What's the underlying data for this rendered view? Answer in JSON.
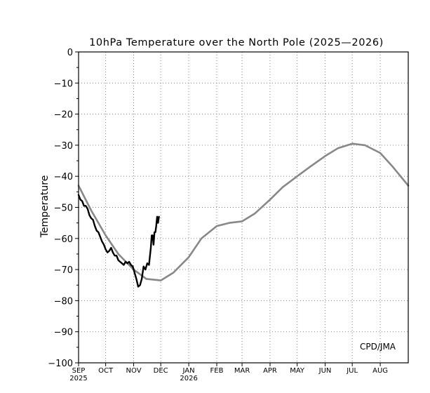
{
  "chart_data": {
    "type": "line",
    "title": "10hPa Temperature over the North Pole (2025—2026)",
    "ylabel": "Temperature",
    "xlabel": "",
    "ylim": [
      -100,
      0
    ],
    "yticks": [
      0,
      -10,
      -20,
      -30,
      -40,
      -50,
      -60,
      -70,
      -80,
      -90,
      -100
    ],
    "xlim": [
      "2025-09-01",
      "2026-09-01"
    ],
    "xticks": [
      {
        "date": "2025-09-01",
        "label": "SEP",
        "year": "2025"
      },
      {
        "date": "2025-10-01",
        "label": "OCT",
        "year": ""
      },
      {
        "date": "2025-11-01",
        "label": "NOV",
        "year": ""
      },
      {
        "date": "2025-12-01",
        "label": "DEC",
        "year": ""
      },
      {
        "date": "2026-01-01",
        "label": "JAN",
        "year": "2026"
      },
      {
        "date": "2026-02-01",
        "label": "FEB",
        "year": ""
      },
      {
        "date": "2026-03-01",
        "label": "MAR",
        "year": ""
      },
      {
        "date": "2026-04-01",
        "label": "APR",
        "year": ""
      },
      {
        "date": "2026-05-01",
        "label": "MAY",
        "year": ""
      },
      {
        "date": "2026-06-01",
        "label": "JUN",
        "year": ""
      },
      {
        "date": "2026-07-01",
        "label": "JUL",
        "year": ""
      },
      {
        "date": "2026-08-01",
        "label": "AUG",
        "year": ""
      }
    ],
    "grid": true,
    "annotation": "CPD/JMA",
    "series": [
      {
        "color": "#888888",
        "x": [
          "2025-09-01",
          "2025-09-15",
          "2025-10-01",
          "2025-10-15",
          "2025-11-01",
          "2025-11-15",
          "2025-12-01",
          "2025-12-15",
          "2026-01-01",
          "2026-01-15",
          "2026-02-01",
          "2026-02-15",
          "2026-03-01",
          "2026-03-15",
          "2026-04-01",
          "2026-04-15",
          "2026-05-01",
          "2026-05-15",
          "2026-06-01",
          "2026-06-15",
          "2026-07-01",
          "2026-07-15",
          "2026-08-01",
          "2026-08-15",
          "2026-09-01"
        ],
        "values": [
          -43,
          -51,
          -59,
          -65,
          -70,
          -73,
          -73.5,
          -71,
          -66,
          -60,
          -56,
          -55,
          -54.5,
          -52,
          -47.5,
          -43.5,
          -40,
          -37,
          -33.5,
          -31,
          -29.5,
          -30,
          -32.5,
          -37,
          -43
        ]
      },
      {
        "color": "#000000",
        "x": [
          "2025-09-01",
          "2025-09-03",
          "2025-09-05",
          "2025-09-07",
          "2025-09-09",
          "2025-09-11",
          "2025-09-13",
          "2025-09-15",
          "2025-09-17",
          "2025-09-19",
          "2025-09-21",
          "2025-09-23",
          "2025-09-25",
          "2025-09-27",
          "2025-09-29",
          "2025-10-01",
          "2025-10-03",
          "2025-10-05",
          "2025-10-07",
          "2025-10-09",
          "2025-10-11",
          "2025-10-13",
          "2025-10-15",
          "2025-10-17",
          "2025-10-19",
          "2025-10-21",
          "2025-10-23",
          "2025-10-25",
          "2025-10-27",
          "2025-10-29",
          "2025-10-31",
          "2025-11-02",
          "2025-11-04",
          "2025-11-06",
          "2025-11-08",
          "2025-11-10",
          "2025-11-12",
          "2025-11-14",
          "2025-11-16",
          "2025-11-18",
          "2025-11-20",
          "2025-11-21",
          "2025-11-22",
          "2025-11-23",
          "2025-11-24",
          "2025-11-25",
          "2025-11-26",
          "2025-11-27",
          "2025-11-28",
          "2025-11-29"
        ],
        "values": [
          -46,
          -47.5,
          -48,
          -49.5,
          -49.5,
          -50.5,
          -52.5,
          -53.5,
          -54,
          -56,
          -57.5,
          -58,
          -59.5,
          -61,
          -62,
          -63.5,
          -64.5,
          -64,
          -63,
          -64.5,
          -65.5,
          -65.5,
          -67,
          -67.5,
          -68,
          -68.5,
          -67.5,
          -68,
          -67.5,
          -68.5,
          -69,
          -71,
          -73,
          -75.5,
          -75,
          -73,
          -69,
          -70,
          -68,
          -68.5,
          -63,
          -59,
          -59,
          -62,
          -58,
          -58,
          -56,
          -53,
          -55,
          -53
        ]
      }
    ]
  }
}
